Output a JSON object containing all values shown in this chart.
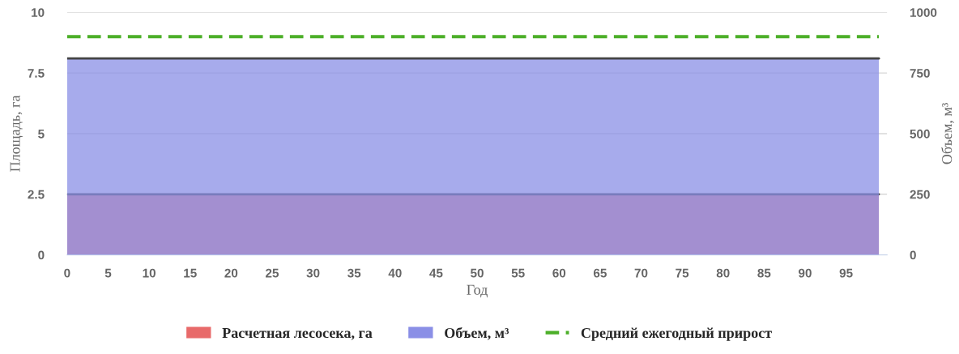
{
  "chart_data": {
    "type": "area",
    "xlabel": "Год",
    "ylabel": "Площадь, га",
    "y2label": "Объем, м³",
    "x": [
      0,
      99
    ],
    "series": [
      {
        "name": "Расчетная лесосека, га",
        "color": "#e86a6a",
        "values": [
          2.5,
          2.5
        ]
      },
      {
        "name": "Объем, м³",
        "color": "#8a8fe6",
        "axis": "y2",
        "values": [
          810,
          810
        ]
      },
      {
        "name": "Средний ежегодный прирост",
        "color": "#4caf28",
        "type": "line",
        "axis": "y2",
        "line_style": "dashed",
        "values": [
          900,
          900
        ]
      }
    ],
    "xlim": [
      0,
      100
    ],
    "xticks": [
      0,
      5,
      10,
      15,
      20,
      25,
      30,
      35,
      40,
      45,
      50,
      55,
      60,
      65,
      70,
      75,
      80,
      85,
      90,
      95
    ],
    "ylim": [
      0,
      10
    ],
    "yticks": [
      0,
      2.5,
      5,
      7.5,
      10
    ],
    "y2lim": [
      0,
      1000
    ],
    "y2ticks": [
      0,
      250,
      500,
      750,
      1000
    ],
    "grid": "y",
    "legend": "bottom"
  }
}
